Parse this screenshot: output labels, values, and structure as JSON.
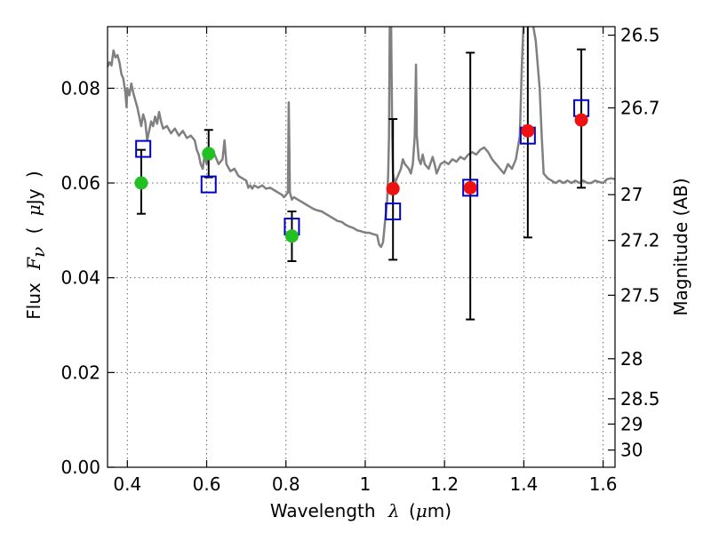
{
  "chart_data": {
    "type": "scatter",
    "xlabel_parts": [
      "Wavelength",
      "λ",
      "(",
      "μ",
      "m)"
    ],
    "ylabel_parts": [
      "Flux",
      "F",
      "ν",
      "(",
      "μ",
      "Jy",
      ")"
    ],
    "right_ylabel": "Magnitude (AB)",
    "xlim": [
      0.35,
      1.63
    ],
    "ylim": [
      0.0,
      0.093
    ],
    "grid": true,
    "x_ticks": [
      {
        "value": 0.4,
        "label": "0.4"
      },
      {
        "value": 0.6,
        "label": "0.6"
      },
      {
        "value": 0.8,
        "label": "0.8"
      },
      {
        "value": 1.0,
        "label": "1"
      },
      {
        "value": 1.2,
        "label": "1.2"
      },
      {
        "value": 1.4,
        "label": "1.4"
      },
      {
        "value": 1.6,
        "label": "1.6"
      }
    ],
    "y_ticks": [
      {
        "value": 0.0,
        "label": "0.00"
      },
      {
        "value": 0.02,
        "label": "0.02"
      },
      {
        "value": 0.04,
        "label": "0.04"
      },
      {
        "value": 0.06,
        "label": "0.06"
      },
      {
        "value": 0.08,
        "label": "0.08"
      }
    ],
    "right_ticks": [
      {
        "value": 26.5,
        "label": "26.5"
      },
      {
        "value": 26.7,
        "label": "26.7"
      },
      {
        "value": 27.0,
        "label": "27"
      },
      {
        "value": 27.2,
        "label": "27.2"
      },
      {
        "value": 27.5,
        "label": "27.5"
      },
      {
        "value": 28.0,
        "label": "28"
      },
      {
        "value": 28.5,
        "label": "28.5"
      },
      {
        "value": 29.0,
        "label": "29"
      },
      {
        "value": 30.0,
        "label": "30"
      }
    ],
    "model_spectrum": {
      "color": "#808080",
      "points": [
        [
          0.35,
          0.0845
        ],
        [
          0.355,
          0.0855
        ],
        [
          0.36,
          0.0848
        ],
        [
          0.365,
          0.088
        ],
        [
          0.37,
          0.0865
        ],
        [
          0.375,
          0.087
        ],
        [
          0.38,
          0.0855
        ],
        [
          0.385,
          0.083
        ],
        [
          0.39,
          0.082
        ],
        [
          0.395,
          0.079
        ],
        [
          0.398,
          0.076
        ],
        [
          0.4,
          0.08
        ],
        [
          0.405,
          0.0785
        ],
        [
          0.41,
          0.081
        ],
        [
          0.415,
          0.079
        ],
        [
          0.42,
          0.0775
        ],
        [
          0.425,
          0.076
        ],
        [
          0.43,
          0.074
        ],
        [
          0.435,
          0.072
        ],
        [
          0.44,
          0.0745
        ],
        [
          0.445,
          0.073
        ],
        [
          0.45,
          0.069
        ],
        [
          0.455,
          0.071
        ],
        [
          0.46,
          0.073
        ],
        [
          0.465,
          0.072
        ],
        [
          0.47,
          0.074
        ],
        [
          0.475,
          0.0725
        ],
        [
          0.48,
          0.075
        ],
        [
          0.485,
          0.073
        ],
        [
          0.49,
          0.0715
        ],
        [
          0.5,
          0.072
        ],
        [
          0.51,
          0.0705
        ],
        [
          0.52,
          0.0715
        ],
        [
          0.53,
          0.07
        ],
        [
          0.54,
          0.071
        ],
        [
          0.55,
          0.0695
        ],
        [
          0.56,
          0.07
        ],
        [
          0.57,
          0.069
        ],
        [
          0.575,
          0.067
        ],
        [
          0.58,
          0.066
        ],
        [
          0.585,
          0.064
        ],
        [
          0.59,
          0.063
        ],
        [
          0.595,
          0.066
        ],
        [
          0.6,
          0.064
        ],
        [
          0.605,
          0.066
        ],
        [
          0.61,
          0.065
        ],
        [
          0.62,
          0.066
        ],
        [
          0.625,
          0.065
        ],
        [
          0.63,
          0.064
        ],
        [
          0.64,
          0.065
        ],
        [
          0.645,
          0.069
        ],
        [
          0.65,
          0.064
        ],
        [
          0.66,
          0.0625
        ],
        [
          0.67,
          0.063
        ],
        [
          0.68,
          0.0615
        ],
        [
          0.69,
          0.061
        ],
        [
          0.7,
          0.0605
        ],
        [
          0.705,
          0.059
        ],
        [
          0.71,
          0.0595
        ],
        [
          0.715,
          0.0588
        ],
        [
          0.72,
          0.0595
        ],
        [
          0.73,
          0.059
        ],
        [
          0.74,
          0.0595
        ],
        [
          0.75,
          0.0588
        ],
        [
          0.76,
          0.059
        ],
        [
          0.77,
          0.0585
        ],
        [
          0.78,
          0.058
        ],
        [
          0.79,
          0.0575
        ],
        [
          0.795,
          0.057
        ],
        [
          0.8,
          0.0575
        ],
        [
          0.805,
          0.058
        ],
        [
          0.807,
          0.077
        ],
        [
          0.81,
          0.058
        ],
        [
          0.815,
          0.0565
        ],
        [
          0.82,
          0.057
        ],
        [
          0.83,
          0.0565
        ],
        [
          0.84,
          0.056
        ],
        [
          0.85,
          0.0555
        ],
        [
          0.86,
          0.055
        ],
        [
          0.87,
          0.0545
        ],
        [
          0.88,
          0.0542
        ],
        [
          0.89,
          0.054
        ],
        [
          0.9,
          0.0535
        ],
        [
          0.91,
          0.053
        ],
        [
          0.92,
          0.0525
        ],
        [
          0.93,
          0.052
        ],
        [
          0.94,
          0.0518
        ],
        [
          0.95,
          0.0512
        ],
        [
          0.96,
          0.0508
        ],
        [
          0.97,
          0.0505
        ],
        [
          0.98,
          0.05
        ],
        [
          0.99,
          0.0498
        ],
        [
          1.0,
          0.0495
        ],
        [
          1.01,
          0.0495
        ],
        [
          1.02,
          0.0492
        ],
        [
          1.03,
          0.049
        ],
        [
          1.035,
          0.047
        ],
        [
          1.04,
          0.0465
        ],
        [
          1.045,
          0.0475
        ],
        [
          1.05,
          0.052
        ],
        [
          1.055,
          0.056
        ],
        [
          1.058,
          0.062
        ],
        [
          1.06,
          0.07
        ],
        [
          1.062,
          0.095
        ],
        [
          1.065,
          0.095
        ],
        [
          1.068,
          0.07
        ],
        [
          1.07,
          0.062
        ],
        [
          1.075,
          0.06
        ],
        [
          1.08,
          0.061
        ],
        [
          1.085,
          0.062
        ],
        [
          1.09,
          0.063
        ],
        [
          1.095,
          0.065
        ],
        [
          1.1,
          0.064
        ],
        [
          1.11,
          0.063
        ],
        [
          1.115,
          0.062
        ],
        [
          1.12,
          0.064
        ],
        [
          1.125,
          0.07
        ],
        [
          1.128,
          0.085
        ],
        [
          1.13,
          0.07
        ],
        [
          1.135,
          0.065
        ],
        [
          1.14,
          0.064
        ],
        [
          1.145,
          0.066
        ],
        [
          1.15,
          0.064
        ],
        [
          1.16,
          0.063
        ],
        [
          1.17,
          0.0655
        ],
        [
          1.175,
          0.064
        ],
        [
          1.18,
          0.062
        ],
        [
          1.19,
          0.064
        ],
        [
          1.2,
          0.0645
        ],
        [
          1.21,
          0.064
        ],
        [
          1.22,
          0.065
        ],
        [
          1.23,
          0.0645
        ],
        [
          1.24,
          0.0655
        ],
        [
          1.25,
          0.065
        ],
        [
          1.26,
          0.066
        ],
        [
          1.27,
          0.0665
        ],
        [
          1.28,
          0.066
        ],
        [
          1.29,
          0.067
        ],
        [
          1.3,
          0.0675
        ],
        [
          1.31,
          0.0665
        ],
        [
          1.32,
          0.065
        ],
        [
          1.33,
          0.064
        ],
        [
          1.34,
          0.063
        ],
        [
          1.35,
          0.062
        ],
        [
          1.36,
          0.064
        ],
        [
          1.37,
          0.063
        ],
        [
          1.38,
          0.065
        ],
        [
          1.39,
          0.07
        ],
        [
          1.395,
          0.085
        ],
        [
          1.4,
          0.095
        ],
        [
          1.42,
          0.095
        ],
        [
          1.43,
          0.09
        ],
        [
          1.44,
          0.08
        ],
        [
          1.445,
          0.07
        ],
        [
          1.45,
          0.062
        ],
        [
          1.46,
          0.061
        ],
        [
          1.47,
          0.0605
        ],
        [
          1.48,
          0.06
        ],
        [
          1.49,
          0.0605
        ],
        [
          1.5,
          0.06
        ],
        [
          1.51,
          0.0605
        ],
        [
          1.52,
          0.06
        ],
        [
          1.53,
          0.0605
        ],
        [
          1.54,
          0.06
        ],
        [
          1.55,
          0.0605
        ],
        [
          1.56,
          0.06
        ],
        [
          1.57,
          0.06
        ],
        [
          1.58,
          0.0605
        ],
        [
          1.59,
          0.0602
        ],
        [
          1.6,
          0.06
        ],
        [
          1.61,
          0.0608
        ],
        [
          1.62,
          0.061
        ],
        [
          1.63,
          0.0608
        ]
      ]
    },
    "model_points": {
      "marker": "open-square",
      "color": "#0000cc",
      "points": [
        {
          "x": 0.44,
          "y": 0.0672
        },
        {
          "x": 0.605,
          "y": 0.0597
        },
        {
          "x": 0.815,
          "y": 0.0508
        },
        {
          "x": 1.07,
          "y": 0.054
        },
        {
          "x": 1.265,
          "y": 0.059
        },
        {
          "x": 1.41,
          "y": 0.07
        },
        {
          "x": 1.545,
          "y": 0.0758
        }
      ]
    },
    "observed_green": {
      "marker": "filled-circle",
      "color": "#22c022",
      "points": [
        {
          "x": 0.435,
          "y": 0.06,
          "yerr_low": 0.0535,
          "yerr_high": 0.067
        },
        {
          "x": 0.605,
          "y": 0.0662,
          "yerr_low": 0.0612,
          "yerr_high": 0.0712
        },
        {
          "x": 0.815,
          "y": 0.0488,
          "yerr_low": 0.0435,
          "yerr_high": 0.054
        }
      ]
    },
    "observed_red": {
      "marker": "filled-circle",
      "color": "#ee1111",
      "points": [
        {
          "x": 1.07,
          "y": 0.0588,
          "yerr_low": 0.0438,
          "yerr_high": 0.0735
        },
        {
          "x": 1.265,
          "y": 0.059,
          "yerr_low": 0.0312,
          "yerr_high": 0.0875
        },
        {
          "x": 1.41,
          "y": 0.071,
          "yerr_low": 0.0485,
          "yerr_high": 0.095
        },
        {
          "x": 1.545,
          "y": 0.0733,
          "yerr_low": 0.059,
          "yerr_high": 0.0882
        }
      ]
    }
  }
}
